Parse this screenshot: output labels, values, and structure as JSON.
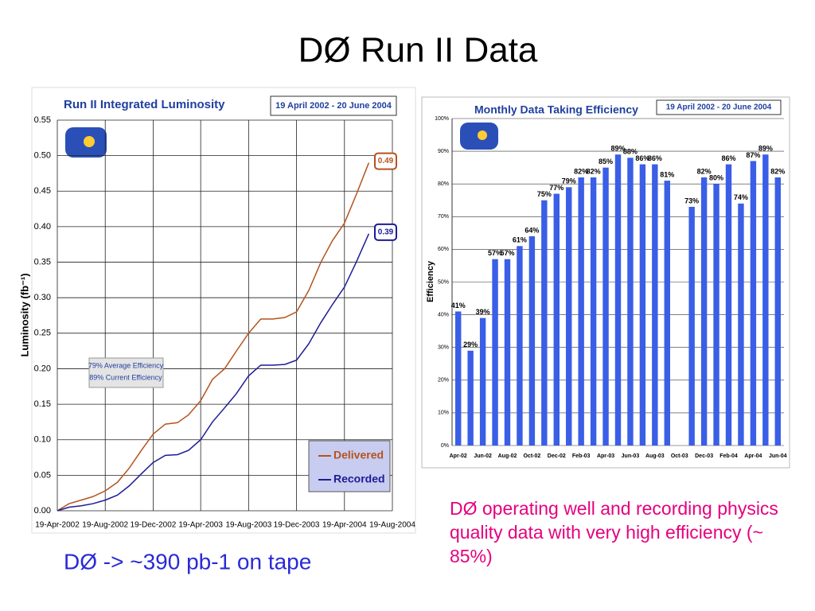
{
  "title": "DØ Run II Data",
  "left_note": "DØ ->  ~390 pb-1 on tape",
  "right_note": "DØ operating well and recording physics quality data with very high efficiency (~ 85%)",
  "chart_data": [
    {
      "type": "line",
      "title": "Run II Integrated Luminosity",
      "subtitle": "19 April 2002 - 20 June 2004",
      "y_label": "Luminosity (fb⁻¹)",
      "x": [
        "2002-04-19",
        "2002-05-19",
        "2002-06-19",
        "2002-07-19",
        "2002-08-19",
        "2002-09-19",
        "2002-10-19",
        "2002-11-19",
        "2002-12-19",
        "2003-01-19",
        "2003-02-19",
        "2003-03-19",
        "2003-04-19",
        "2003-05-19",
        "2003-06-19",
        "2003-07-19",
        "2003-08-19",
        "2003-09-19",
        "2003-10-19",
        "2003-11-19",
        "2003-12-19",
        "2004-01-19",
        "2004-02-19",
        "2004-03-19",
        "2004-04-19",
        "2004-05-19",
        "2004-06-20"
      ],
      "series": [
        {
          "name": "Delivered",
          "color": "#b4531f",
          "end_label": "0.49",
          "values": [
            0,
            0.01,
            0.015,
            0.02,
            0.028,
            0.04,
            0.06,
            0.085,
            0.108,
            0.122,
            0.124,
            0.135,
            0.155,
            0.185,
            0.2,
            0.225,
            0.25,
            0.27,
            0.27,
            0.272,
            0.28,
            0.31,
            0.35,
            0.38,
            0.405,
            0.445,
            0.49
          ]
        },
        {
          "name": "Recorded",
          "color": "#1c1c96",
          "end_label": "0.39",
          "values": [
            0,
            0.005,
            0.007,
            0.01,
            0.015,
            0.022,
            0.035,
            0.052,
            0.068,
            0.078,
            0.079,
            0.085,
            0.1,
            0.125,
            0.145,
            0.165,
            0.19,
            0.205,
            0.205,
            0.206,
            0.212,
            0.235,
            0.265,
            0.29,
            0.315,
            0.35,
            0.39
          ]
        }
      ],
      "notes": [
        "79% Average Efficiency",
        "89% Current Efficiency"
      ],
      "xlim": [
        "2002-04-19",
        "2004-08-19"
      ],
      "xticks": [
        {
          "value": "2002-04-19",
          "label": "19-Apr-2002"
        },
        {
          "value": "2002-08-19",
          "label": "19-Aug-2002"
        },
        {
          "value": "2002-12-19",
          "label": "19-Dec-2002"
        },
        {
          "value": "2003-04-19",
          "label": "19-Apr-2003"
        },
        {
          "value": "2003-08-19",
          "label": "19-Aug-2003"
        },
        {
          "value": "2003-12-19",
          "label": "19-Dec-2003"
        },
        {
          "value": "2004-04-19",
          "label": "19-Apr-2004"
        },
        {
          "value": "2004-08-19",
          "label": "19-Aug-2004"
        }
      ],
      "ylim": [
        0,
        0.55
      ],
      "yticks": [
        {
          "value": 0,
          "label": "0.00"
        },
        {
          "value": 0.05,
          "label": "0.05"
        },
        {
          "value": 0.1,
          "label": "0.10"
        },
        {
          "value": 0.15,
          "label": "0.15"
        },
        {
          "value": 0.2,
          "label": "0.20"
        },
        {
          "value": 0.25,
          "label": "0.25"
        },
        {
          "value": 0.3,
          "label": "0.30"
        },
        {
          "value": 0.35,
          "label": "0.35"
        },
        {
          "value": 0.4,
          "label": "0.40"
        },
        {
          "value": 0.45,
          "label": "0.45"
        },
        {
          "value": 0.5,
          "label": "0.50"
        },
        {
          "value": 0.55,
          "label": "0.55"
        }
      ],
      "grid": true,
      "legend": "lower right"
    },
    {
      "type": "bar",
      "title": "Monthly Data Taking Efficiency",
      "subtitle": "19 April 2002 - 20 June 2004",
      "y_label": "Efficiency",
      "color": "#3a5ee6",
      "categories": [
        "Apr-02",
        null,
        "Jun-02",
        null,
        "Aug-02",
        null,
        "Oct-02",
        null,
        "Dec-02",
        null,
        "Feb-03",
        null,
        "Apr-03",
        null,
        "Jun-03",
        null,
        "Aug-03",
        null,
        "Oct-03",
        null,
        "Dec-03",
        null,
        "Feb-04",
        null,
        "Apr-04",
        null,
        "Jun-04"
      ],
      "values": [
        41,
        29,
        39,
        57,
        57,
        61,
        64,
        75,
        77,
        79,
        82,
        82,
        85,
        89,
        88,
        86,
        86,
        81,
        null,
        73,
        82,
        80,
        86,
        74,
        87,
        89,
        82
      ],
      "value_labels": [
        "41%",
        "29%",
        "39%",
        "57%",
        "57%",
        "61%",
        "64%",
        "75%",
        "77%",
        "79%",
        "82%",
        "82%",
        "85%",
        "89%",
        "88%",
        "86%",
        "86%",
        "81%",
        null,
        "73%",
        "82%",
        "80%",
        "86%",
        "74%",
        "87%",
        "89%",
        "82%"
      ],
      "ylim": [
        0,
        100
      ],
      "yticks": [
        {
          "value": 0,
          "label": "0%"
        },
        {
          "value": 10,
          "label": "10%"
        },
        {
          "value": 20,
          "label": "20%"
        },
        {
          "value": 30,
          "label": "30%"
        },
        {
          "value": 40,
          "label": "40%"
        },
        {
          "value": 50,
          "label": "50%"
        },
        {
          "value": 60,
          "label": "60%"
        },
        {
          "value": 70,
          "label": "70%"
        },
        {
          "value": 80,
          "label": "80%"
        },
        {
          "value": 90,
          "label": "90%"
        },
        {
          "value": 100,
          "label": "100%"
        }
      ],
      "grid": true
    }
  ]
}
